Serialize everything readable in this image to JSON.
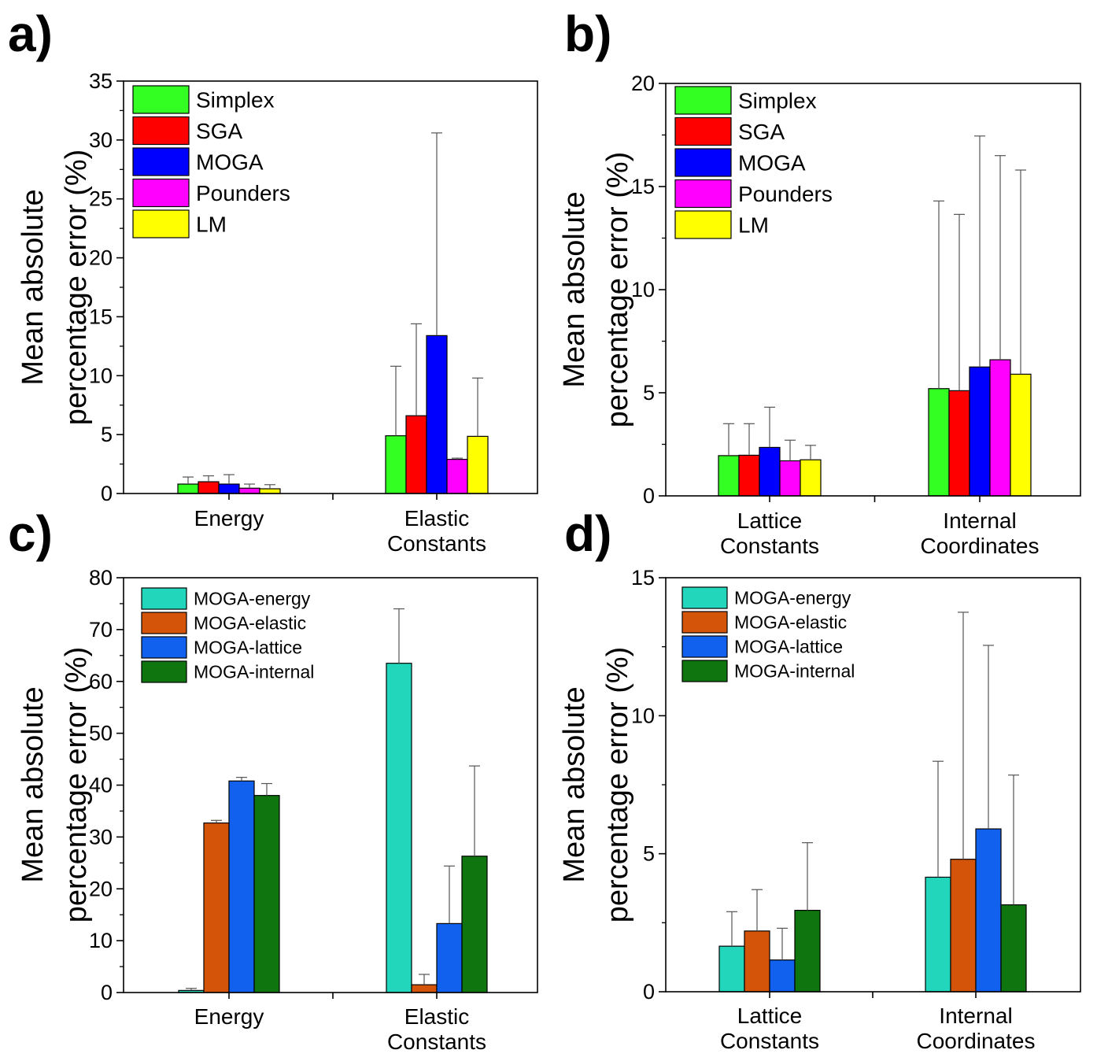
{
  "chart_data": [
    {
      "panel": "a)",
      "type": "bar",
      "ylabel_line1": "Mean absolute",
      "ylabel_line2": "percentage error (%)",
      "ylim": [
        0,
        35
      ],
      "yticks": [
        0,
        5,
        10,
        15,
        20,
        25,
        30,
        35
      ],
      "categories": [
        [
          "Energy"
        ],
        [
          "Elastic",
          "Constants"
        ]
      ],
      "legend_style": "big",
      "series": [
        {
          "name": "Simplex",
          "color": "#33ff22",
          "values": [
            0.8,
            4.9
          ],
          "errors": [
            0.6,
            5.9
          ]
        },
        {
          "name": "SGA",
          "color": "#ff0000",
          "values": [
            1.0,
            6.6
          ],
          "errors": [
            0.5,
            7.8
          ]
        },
        {
          "name": "MOGA",
          "color": "#0000ff",
          "values": [
            0.8,
            13.4
          ],
          "errors": [
            0.8,
            17.2
          ]
        },
        {
          "name": "Pounders",
          "color": "#ff00ff",
          "values": [
            0.45,
            2.9
          ],
          "errors": [
            0.35,
            0.1
          ]
        },
        {
          "name": "LM",
          "color": "#ffff00",
          "values": [
            0.4,
            4.85
          ],
          "errors": [
            0.35,
            4.95
          ]
        }
      ]
    },
    {
      "panel": "b)",
      "type": "bar",
      "ylabel_line1": "Mean absolute",
      "ylabel_line2": "percentage error (%)",
      "ylim": [
        0,
        20
      ],
      "yticks": [
        0,
        5,
        10,
        15,
        20
      ],
      "categories": [
        [
          "Lattice",
          "Constants"
        ],
        [
          "Internal",
          "Coordinates"
        ]
      ],
      "legend_style": "big",
      "series": [
        {
          "name": "Simplex",
          "color": "#33ff22",
          "values": [
            1.95,
            5.2
          ],
          "errors": [
            1.55,
            9.1
          ]
        },
        {
          "name": "SGA",
          "color": "#ff0000",
          "values": [
            1.97,
            5.1
          ],
          "errors": [
            1.53,
            8.55
          ]
        },
        {
          "name": "MOGA",
          "color": "#0000ff",
          "values": [
            2.35,
            6.25
          ],
          "errors": [
            1.95,
            11.2
          ]
        },
        {
          "name": "Pounders",
          "color": "#ff00ff",
          "values": [
            1.7,
            6.6
          ],
          "errors": [
            1.0,
            9.9
          ]
        },
        {
          "name": "LM",
          "color": "#ffff00",
          "values": [
            1.75,
            5.9
          ],
          "errors": [
            0.7,
            9.9
          ]
        }
      ]
    },
    {
      "panel": "c)",
      "type": "bar",
      "ylabel_line1": "Mean absolute",
      "ylabel_line2": "percentage error (%)",
      "ylim": [
        0,
        80
      ],
      "yticks": [
        0,
        10,
        20,
        30,
        40,
        50,
        60,
        70,
        80
      ],
      "categories": [
        [
          "Energy"
        ],
        [
          "Elastic",
          "Constants"
        ]
      ],
      "legend_style": "small",
      "series": [
        {
          "name": "MOGA-energy",
          "color": "#22d6bb",
          "values": [
            0.4,
            63.5
          ],
          "errors": [
            0.4,
            10.5
          ]
        },
        {
          "name": "MOGA-elastic",
          "color": "#d4550a",
          "values": [
            32.7,
            1.5
          ],
          "errors": [
            0.5,
            2.0
          ]
        },
        {
          "name": "MOGA-lattice",
          "color": "#1160ee",
          "values": [
            40.8,
            13.3
          ],
          "errors": [
            0.7,
            11.1
          ]
        },
        {
          "name": "MOGA-internal",
          "color": "#0f750f",
          "values": [
            38.0,
            26.3
          ],
          "errors": [
            2.3,
            17.4
          ]
        }
      ]
    },
    {
      "panel": "d)",
      "type": "bar",
      "ylabel_line1": "Mean absolute",
      "ylabel_line2": "percentage error (%)",
      "ylim": [
        0,
        15
      ],
      "yticks": [
        0,
        5,
        10,
        15
      ],
      "categories": [
        [
          "Lattice",
          "Constants"
        ],
        [
          "Internal",
          "Coordinates"
        ]
      ],
      "legend_style": "small",
      "series": [
        {
          "name": "MOGA-energy",
          "color": "#22d6bb",
          "values": [
            1.65,
            4.15
          ],
          "errors": [
            1.25,
            4.2
          ]
        },
        {
          "name": "MOGA-elastic",
          "color": "#d4550a",
          "values": [
            2.2,
            4.8
          ],
          "errors": [
            1.5,
            8.95
          ]
        },
        {
          "name": "MOGA-lattice",
          "color": "#1160ee",
          "values": [
            1.15,
            5.9
          ],
          "errors": [
            1.15,
            6.65
          ]
        },
        {
          "name": "MOGA-internal",
          "color": "#0f750f",
          "values": [
            2.95,
            3.15
          ],
          "errors": [
            2.45,
            4.7
          ]
        }
      ]
    }
  ]
}
